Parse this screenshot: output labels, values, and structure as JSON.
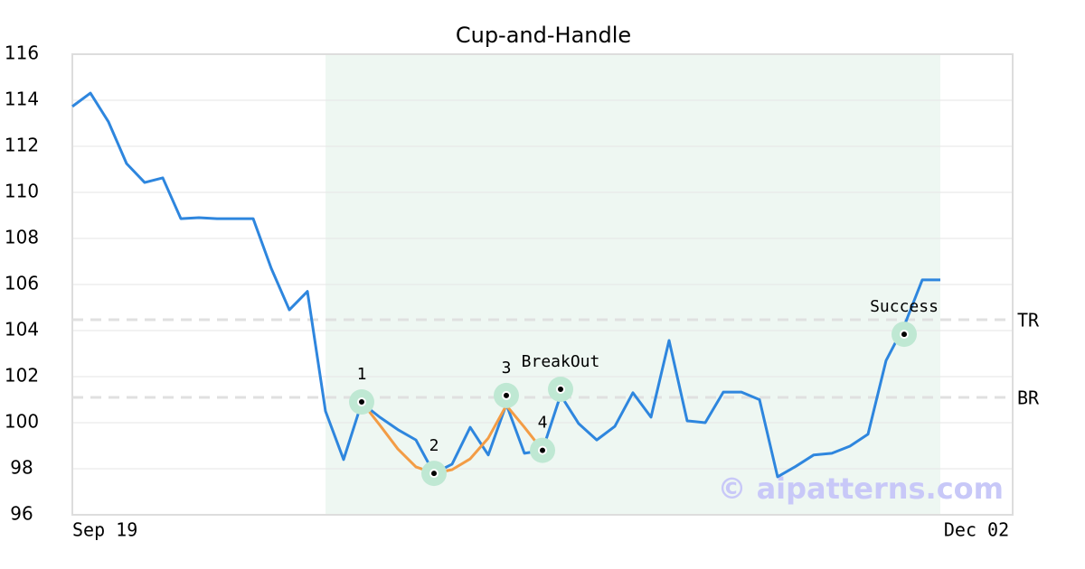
{
  "chart_data": {
    "type": "line",
    "title": "Cup-and-Handle",
    "categories": [
      "Sep 19",
      null,
      null,
      null,
      null,
      null,
      null,
      null,
      null,
      null,
      null,
      null,
      null,
      null,
      null,
      null,
      null,
      null,
      null,
      null,
      null,
      null,
      null,
      null,
      null,
      null,
      null,
      null,
      null,
      null,
      null,
      null,
      null,
      null,
      null,
      null,
      null,
      null,
      null,
      null,
      null,
      null,
      null,
      null,
      null,
      null,
      null,
      null,
      null,
      null,
      "Dec 02"
    ],
    "series": [
      {
        "color": "#2e86de",
        "values": [
          113.73,
          114.31,
          113.06,
          111.25,
          110.43,
          110.63,
          108.86,
          108.9,
          108.86,
          108.86,
          108.86,
          106.7,
          104.9,
          105.7,
          100.5,
          98.4,
          100.86,
          100.24,
          99.7,
          99.25,
          97.8,
          98.2,
          99.8,
          98.6,
          100.8,
          98.67,
          98.8,
          101.2,
          99.96,
          99.25,
          99.84,
          101.3,
          100.24,
          103.57,
          100.08,
          100.0,
          101.33,
          101.33,
          101.0,
          97.65,
          98.1,
          98.6,
          98.67,
          98.98,
          99.5,
          102.7,
          104.2,
          106.2,
          106.2,
          null,
          null
        ]
      },
      {
        "color": "#f39c45",
        "values": [
          null,
          null,
          null,
          null,
          null,
          null,
          null,
          null,
          null,
          null,
          null,
          null,
          null,
          null,
          null,
          null,
          100.9,
          99.9,
          98.86,
          98.08,
          97.8,
          97.96,
          98.43,
          99.33,
          100.75,
          99.8,
          98.8,
          null,
          null,
          null,
          null,
          null,
          null,
          null,
          null,
          null,
          null,
          null,
          null,
          null,
          null,
          null,
          null,
          null,
          null,
          null,
          null,
          null,
          null,
          null,
          null
        ]
      }
    ],
    "ylim": [
      96,
      116
    ],
    "yticks": [
      96,
      98,
      100,
      102,
      104,
      106,
      108,
      110,
      112,
      114,
      116
    ],
    "grid": true,
    "highlight_range": [
      14,
      48
    ],
    "levels": [
      {
        "name": "TR",
        "value": 104.47
      },
      {
        "name": "BR",
        "value": 101.1
      }
    ],
    "annotations": [
      {
        "label": "1",
        "index": 16,
        "value": 100.9
      },
      {
        "label": "2",
        "index": 20,
        "value": 97.8
      },
      {
        "label": "3",
        "index": 24,
        "value": 101.18
      },
      {
        "label": "4",
        "index": 26,
        "value": 98.8
      },
      {
        "label": "BreakOut",
        "index": 27,
        "value": 101.45
      },
      {
        "label": "Success",
        "index": 46,
        "value": 103.84
      }
    ],
    "watermark": "© aipatterns.com"
  }
}
